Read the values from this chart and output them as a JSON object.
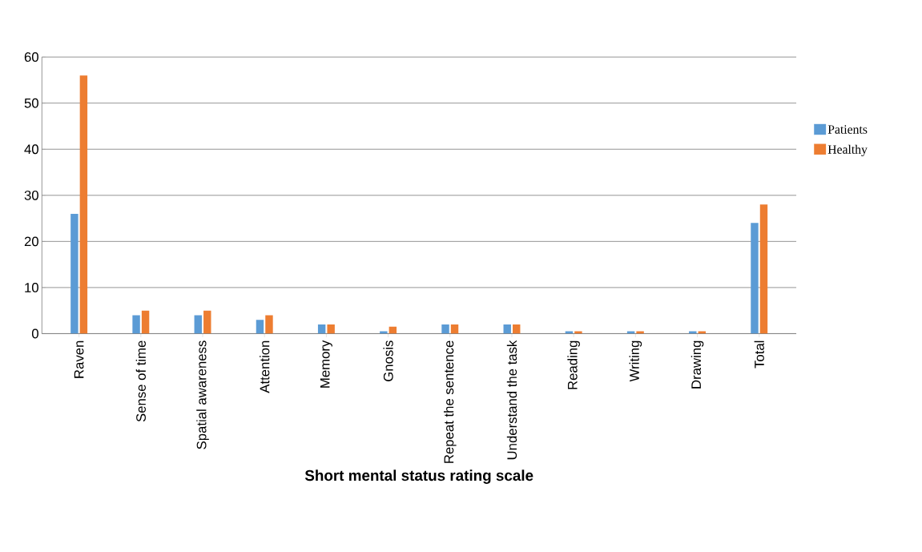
{
  "chart_data": {
    "type": "bar",
    "xlabel": "Short mental status rating scale",
    "categories": [
      "Raven",
      "Sense of time",
      "Spatial awareness",
      "Attention",
      "Memory",
      "Gnosis",
      "Repeat the sentence",
      "Understand the task",
      "Reading",
      "Writing",
      "Drawing",
      "Total"
    ],
    "series": [
      {
        "name": "Patients",
        "color": "#5b9bd5",
        "values": [
          26,
          4,
          4,
          3,
          2,
          0.5,
          2,
          2,
          0.5,
          0.5,
          0.5,
          24
        ]
      },
      {
        "name": "Healthy",
        "color": "#ed7d31",
        "values": [
          56,
          5,
          5,
          4,
          2,
          1.5,
          2,
          2,
          0.5,
          0.5,
          0.5,
          28
        ]
      }
    ],
    "ylim": [
      0,
      60
    ],
    "yticks": [
      0,
      10,
      20,
      30,
      40,
      50,
      60
    ],
    "grid": "y",
    "legend": "right"
  }
}
